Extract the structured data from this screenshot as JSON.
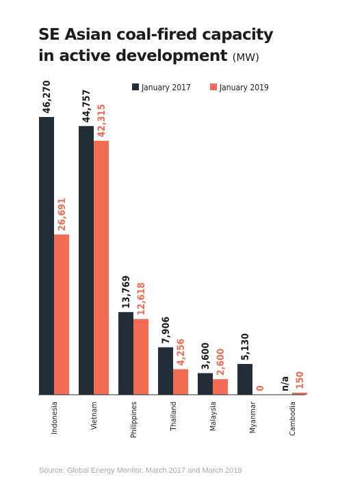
{
  "title": {
    "line1": "SE Asian coal-fired capacity",
    "line2": "in active development",
    "unit": "(MW)"
  },
  "source": "Source: Global Energy Monitor, March 2017 and March 2019",
  "colors": {
    "dark": "#222d37",
    "accent": "#f26b52",
    "text": "#1c1c1c",
    "muted": "#a7a7a7"
  },
  "chart_data": {
    "type": "bar",
    "categories": [
      "Indonesia",
      "Vietnam",
      "Philippines",
      "Thailand",
      "Malaysia",
      "Myanmar",
      "Cambodia"
    ],
    "series": [
      {
        "name": "January 2017",
        "color": "#222d37",
        "values": [
          46270,
          44757,
          13769,
          7906,
          3600,
          5130,
          null
        ],
        "labels": [
          "46,270",
          "44,757",
          "13,769",
          "7,906",
          "3,600",
          "5,130",
          "n/a"
        ]
      },
      {
        "name": "January 2019",
        "color": "#f26b52",
        "values": [
          26691,
          42315,
          12618,
          4256,
          2600,
          0,
          150
        ],
        "labels": [
          "26,691",
          "42,315",
          "12,618",
          "4,256",
          "2,600",
          "0",
          "150"
        ]
      }
    ],
    "title": "SE Asian coal-fired capacity in active development",
    "ylabel": "(MW)",
    "ylim": [
      0,
      46270
    ],
    "legend": "top",
    "grid": false
  }
}
